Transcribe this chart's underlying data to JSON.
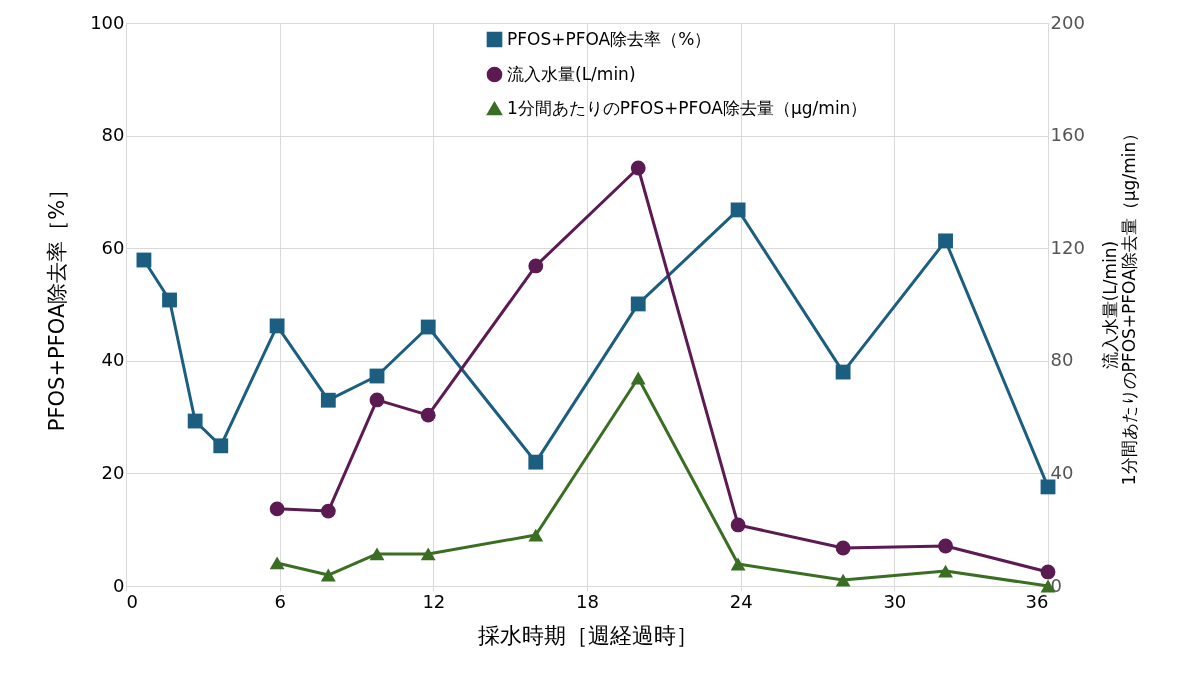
{
  "chart_data": {
    "type": "line",
    "xlabel": "採水時期［週経過時］",
    "ylabel": "PFOS+PFOA除去率［%］",
    "y2label": "流入水量(L/min)\n1分間あたりのPFOS+PFOA除去量（μg/min）",
    "xlim": [
      0,
      36
    ],
    "xticks": [
      0,
      6,
      12,
      18,
      24,
      30,
      36
    ],
    "ylim": [
      0,
      100
    ],
    "yticks": [
      0,
      20,
      40,
      60,
      80,
      100
    ],
    "y2lim": [
      0,
      200
    ],
    "y2ticks": [
      0,
      40,
      80,
      120,
      160,
      200
    ],
    "grid": true,
    "legend": "top",
    "line_style": "solid",
    "series": [
      {
        "name": "PFOS+PFOA除去率（%）",
        "color": "#1b5e80",
        "marker": "square",
        "x": [
          0.7,
          1.7,
          2.7,
          3.7,
          5.9,
          7.9,
          9.8,
          11.8,
          16,
          20,
          23.9,
          28,
          32,
          36
        ],
        "values": [
          57.9,
          50.8,
          29.3,
          24.9,
          46.2,
          33.0,
          37.3,
          46.0,
          22.0,
          50.1,
          66.8,
          38.0,
          61.3,
          17.6
        ]
      },
      {
        "name": "流入水量(L/min)",
        "color": "#5c1a52",
        "marker": "circle",
        "axis": "y2",
        "x": [
          5.9,
          7.9,
          9.8,
          11.8,
          16,
          20,
          23.9,
          28,
          32,
          36
        ],
        "values": [
          27.4,
          26.6,
          66.1,
          60.7,
          113.7,
          148.5,
          21.7,
          13.5,
          14.2,
          5.0
        ]
      },
      {
        "name": "1分間あたりのPFOS+PFOA除去量（μg/min）",
        "color": "#3a6e22",
        "marker": "triangle",
        "axis": "y2",
        "x": [
          5.9,
          7.9,
          9.8,
          11.8,
          16,
          20,
          23.9,
          28,
          32,
          36
        ],
        "values": [
          8.2,
          3.9,
          11.4,
          11.4,
          18.1,
          73.9,
          7.8,
          2.1,
          5.3,
          0.0
        ]
      }
    ]
  }
}
